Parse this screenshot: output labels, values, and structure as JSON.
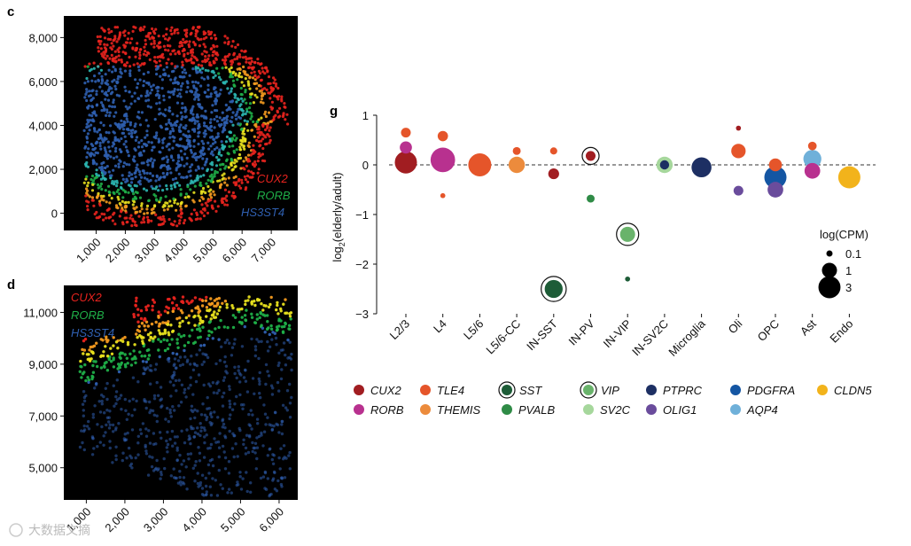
{
  "colors": {
    "CUX2": "#a11d21",
    "RORB": "#b8318f",
    "TLE4": "#e5552a",
    "THEMIS": "#ec8b3c",
    "SST": "#1d5c37",
    "PVALB": "#2f8b46",
    "VIP": "#69b36b",
    "SV2C": "#a6d79c",
    "PTPRC": "#1d2f63",
    "PDGFRA": "#1456a3",
    "OLIG1": "#6a4c9c",
    "AQP4": "#6fb0d9",
    "CLDN5": "#f2b31b",
    "spatial_red": "#e8231e",
    "spatial_green": "#1fae48",
    "spatial_blue": "#2f5fb0"
  },
  "chart_data": [
    {
      "id": "c",
      "type": "scatter",
      "panel_label": "c",
      "description_genes": [
        "CUX2",
        "RORB",
        "HS3ST4"
      ],
      "xlim": [
        500,
        7300
      ],
      "ylim": [
        -300,
        8500
      ],
      "x_ticks": [
        1000,
        2000,
        3000,
        4000,
        5000,
        6000,
        7000
      ],
      "x_tick_labels": [
        "1,000",
        "2,000",
        "3,000",
        "4,000",
        "5,000",
        "6,000",
        "7,000"
      ],
      "y_ticks": [
        0,
        2000,
        4000,
        6000,
        8000
      ],
      "y_tick_labels": [
        "0",
        "2,000",
        "4,000",
        "6,000",
        "8,000"
      ],
      "legend": [
        {
          "label": "CUX2",
          "color_key": "spatial_red"
        },
        {
          "label": "RORB",
          "color_key": "spatial_green"
        },
        {
          "label": "HS3ST4",
          "color_key": "spatial_blue"
        }
      ]
    },
    {
      "id": "d",
      "type": "scatter",
      "panel_label": "d",
      "xlim": [
        600,
        6300
      ],
      "ylim": [
        4100,
        11700
      ],
      "x_ticks": [
        1000,
        2000,
        3000,
        4000,
        5000,
        6000
      ],
      "x_tick_labels": [
        "1,000",
        "2,000",
        "3,000",
        "4,000",
        "5,000",
        "6,000"
      ],
      "y_ticks": [
        5000,
        7000,
        9000,
        11000
      ],
      "y_tick_labels": [
        "5,000",
        "7,000",
        "9,000",
        "11,000"
      ],
      "legend": [
        {
          "label": "CUX2",
          "color_key": "spatial_red"
        },
        {
          "label": "RORB",
          "color_key": "spatial_green"
        },
        {
          "label": "HS3ST4",
          "color_key": "spatial_blue"
        }
      ]
    },
    {
      "id": "g",
      "type": "scatter",
      "panel_label": "g",
      "ylabel_main": "log",
      "ylabel_sub": "2",
      "ylabel_rest": "(elderly/adult)",
      "ylim": [
        -3,
        1
      ],
      "y_ticks": [
        1,
        0,
        -1,
        -2,
        -3
      ],
      "y_tick_labels": [
        "1",
        "0",
        "−1",
        "−2",
        "−3"
      ],
      "categories": [
        "L2/3",
        "L4",
        "L5/6",
        "L5/6-CC",
        "IN-SST",
        "IN-PV",
        "IN-VIP",
        "IN-SV2C",
        "Microglia",
        "Oli",
        "OPC",
        "Ast",
        "Endo"
      ],
      "points": [
        {
          "cat": 0,
          "gene": "RORB",
          "y": 0.35,
          "logcpm": 0.6
        },
        {
          "cat": 0,
          "gene": "TLE4",
          "y": 0.65,
          "logcpm": 0.35
        },
        {
          "cat": 0,
          "gene": "CUX2",
          "y": 0.05,
          "logcpm": 2.4
        },
        {
          "cat": 1,
          "gene": "RORB",
          "y": 0.1,
          "logcpm": 3.0
        },
        {
          "cat": 1,
          "gene": "TLE4",
          "y": 0.58,
          "logcpm": 0.4
        },
        {
          "cat": 1,
          "gene": "TLE4",
          "y": -0.62,
          "logcpm": 0.05
        },
        {
          "cat": 2,
          "gene": "TLE4",
          "y": 0.0,
          "logcpm": 2.6
        },
        {
          "cat": 3,
          "gene": "THEMIS",
          "y": 0.0,
          "logcpm": 1.2
        },
        {
          "cat": 3,
          "gene": "TLE4",
          "y": 0.28,
          "logcpm": 0.2
        },
        {
          "cat": 4,
          "gene": "SST",
          "y": -2.5,
          "logcpm": 1.5,
          "ring": true
        },
        {
          "cat": 4,
          "gene": "CUX2",
          "y": -0.18,
          "logcpm": 0.45
        },
        {
          "cat": 4,
          "gene": "TLE4",
          "y": 0.28,
          "logcpm": 0.15
        },
        {
          "cat": 5,
          "gene": "PVALB",
          "y": -0.68,
          "logcpm": 0.2
        },
        {
          "cat": 5,
          "gene": "CUX2",
          "y": 0.18,
          "logcpm": 0.35,
          "ring": true
        },
        {
          "cat": 6,
          "gene": "VIP",
          "y": -1.4,
          "logcpm": 1.0,
          "ring": true
        },
        {
          "cat": 6,
          "gene": "SST",
          "y": -2.3,
          "logcpm": 0.05
        },
        {
          "cat": 7,
          "gene": "SV2C",
          "y": 0.0,
          "logcpm": 1.2
        },
        {
          "cat": 7,
          "gene": "PTPRC",
          "y": 0.0,
          "logcpm": 0.3
        },
        {
          "cat": 8,
          "gene": "PTPRC",
          "y": -0.05,
          "logcpm": 1.9
        },
        {
          "cat": 9,
          "gene": "TLE4",
          "y": 0.28,
          "logcpm": 0.9
        },
        {
          "cat": 9,
          "gene": "OLIG1",
          "y": -0.52,
          "logcpm": 0.35
        },
        {
          "cat": 9,
          "gene": "CUX2",
          "y": 0.74,
          "logcpm": 0.05
        },
        {
          "cat": 10,
          "gene": "TLE4",
          "y": 0.0,
          "logcpm": 0.7
        },
        {
          "cat": 10,
          "gene": "OLIG1",
          "y": -0.5,
          "logcpm": 1.1
        },
        {
          "cat": 10,
          "gene": "PDGFRA",
          "y": -0.25,
          "logcpm": 2.4
        },
        {
          "cat": 11,
          "gene": "TLE4",
          "y": 0.38,
          "logcpm": 0.25
        },
        {
          "cat": 11,
          "gene": "RORB",
          "y": -0.12,
          "logcpm": 1.1
        },
        {
          "cat": 11,
          "gene": "AQP4",
          "y": 0.12,
          "logcpm": 1.5
        },
        {
          "cat": 12,
          "gene": "CLDN5",
          "y": -0.25,
          "logcpm": 2.4
        }
      ],
      "size_legend": {
        "title": "log(CPM)",
        "entries": [
          {
            "label": "0.1",
            "logcpm": 0.1
          },
          {
            "label": "1",
            "logcpm": 1
          },
          {
            "label": "3",
            "logcpm": 3
          }
        ]
      },
      "gene_legend": [
        {
          "label": "CUX2",
          "gene": "CUX2"
        },
        {
          "label": "TLE4",
          "gene": "TLE4"
        },
        {
          "label": "SST",
          "gene": "SST",
          "ring": true
        },
        {
          "label": "VIP",
          "gene": "VIP",
          "ring": true
        },
        {
          "label": "PTPRC",
          "gene": "PTPRC"
        },
        {
          "label": "PDGFRA",
          "gene": "PDGFRA"
        },
        {
          "label": "CLDN5",
          "gene": "CLDN5"
        },
        {
          "label": "RORB",
          "gene": "RORB"
        },
        {
          "label": "THEMIS",
          "gene": "THEMIS"
        },
        {
          "label": "PVALB",
          "gene": "PVALB"
        },
        {
          "label": "SV2C",
          "gene": "SV2C"
        },
        {
          "label": "OLIG1",
          "gene": "OLIG1"
        },
        {
          "label": "AQP4",
          "gene": "AQP4"
        }
      ]
    }
  ]
}
